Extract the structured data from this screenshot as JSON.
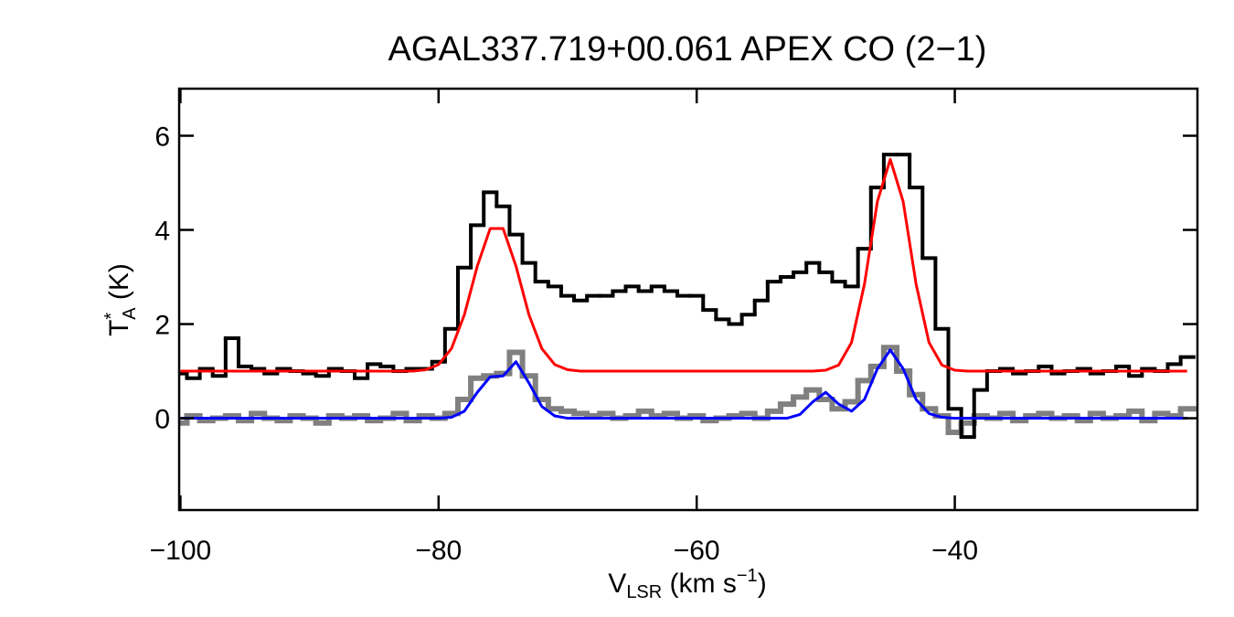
{
  "chart_data": {
    "type": "line",
    "title": "AGAL337.719+00.061  APEX CO (2−1)",
    "x_label": {
      "main": "V",
      "sub": "LSR",
      "rest": " (km s",
      "sup": "−1",
      "end": ")"
    },
    "y_label": {
      "main": "T",
      "sup": "*",
      "sub": "A",
      "rest": " (K)"
    },
    "xlim": [
      -100.1,
      -21.2
    ],
    "ylim": [
      -1.95,
      7.0
    ],
    "xticks": [
      {
        "value": -100,
        "label": "−100"
      },
      {
        "value": -80,
        "label": "−80"
      },
      {
        "value": -60,
        "label": "−60"
      },
      {
        "value": -40,
        "label": "−40"
      }
    ],
    "yticks": [
      0,
      2,
      4,
      6
    ],
    "x": [
      -100,
      -99,
      -98,
      -97,
      -96,
      -95,
      -94,
      -93,
      -92,
      -91,
      -90,
      -89,
      -88,
      -87,
      -86,
      -85,
      -84,
      -83,
      -82,
      -81,
      -80,
      -79,
      -78,
      -77,
      -76,
      -75,
      -74,
      -73,
      -72,
      -71,
      -70,
      -69,
      -68,
      -67,
      -66,
      -65,
      -64,
      -63,
      -62,
      -61,
      -60,
      -59,
      -58,
      -57,
      -56,
      -55,
      -54,
      -53,
      -52,
      -51,
      -50,
      -49,
      -48,
      -47,
      -46,
      -45,
      -44,
      -43,
      -42,
      -41,
      -40,
      -39,
      -38,
      -37,
      -36,
      -35,
      -34,
      -33,
      -32,
      -31,
      -30,
      -29,
      -28,
      -27,
      -26,
      -25,
      -24,
      -23,
      -22
    ],
    "series": [
      {
        "color": "#808080",
        "step": true,
        "values": [
          -0.1,
          0.05,
          -0.05,
          0.0,
          0.05,
          -0.05,
          0.1,
          0.0,
          -0.05,
          0.05,
          0.0,
          -0.1,
          0.05,
          0.0,
          0.05,
          -0.05,
          0.0,
          0.1,
          -0.05,
          0.05,
          0.0,
          0.1,
          0.4,
          0.85,
          0.9,
          0.95,
          1.4,
          0.9,
          0.4,
          0.2,
          0.15,
          0.1,
          0.05,
          0.1,
          0.0,
          0.05,
          0.15,
          0.05,
          0.1,
          0.0,
          0.05,
          -0.05,
          0.0,
          0.05,
          0.1,
          0.0,
          0.15,
          0.3,
          0.45,
          0.6,
          0.4,
          0.2,
          0.35,
          0.8,
          1.1,
          1.5,
          1.0,
          0.5,
          0.2,
          0.05,
          -0.3,
          -0.1,
          0.05,
          0.0,
          0.1,
          -0.05,
          0.05,
          0.1,
          0.0,
          0.05,
          -0.05,
          0.1,
          0.0,
          0.05,
          0.15,
          -0.05,
          0.1,
          0.05,
          0.2
        ]
      },
      {
        "color": "#000000",
        "step": true,
        "values": [
          0.95,
          0.85,
          1.05,
          0.9,
          1.7,
          1.1,
          1.05,
          0.95,
          1.05,
          1.0,
          0.95,
          0.9,
          1.05,
          1.0,
          0.85,
          1.15,
          1.1,
          1.0,
          1.05,
          1.05,
          1.2,
          1.9,
          3.2,
          4.1,
          4.8,
          4.5,
          3.9,
          3.3,
          2.9,
          2.8,
          2.6,
          2.5,
          2.6,
          2.6,
          2.7,
          2.8,
          2.7,
          2.8,
          2.7,
          2.6,
          2.6,
          2.3,
          2.1,
          2.0,
          2.2,
          2.5,
          2.9,
          3.0,
          3.1,
          3.3,
          3.1,
          2.9,
          2.8,
          3.6,
          4.9,
          5.6,
          5.6,
          4.9,
          3.4,
          1.9,
          0.2,
          -0.4,
          0.6,
          1.0,
          1.05,
          0.95,
          1.0,
          1.1,
          0.95,
          1.0,
          1.05,
          0.95,
          1.0,
          1.1,
          0.9,
          1.05,
          1.0,
          1.15,
          1.3
        ]
      },
      {
        "color": "#ff0000",
        "step": false,
        "values": [
          1.0,
          1.0,
          1.0,
          1.0,
          1.0,
          1.0,
          1.0,
          1.0,
          1.0,
          1.0,
          1.0,
          1.0,
          1.0,
          1.0,
          1.0,
          1.0,
          1.0,
          1.0,
          1.0,
          1.03,
          1.14,
          1.48,
          2.2,
          3.23,
          4.03,
          4.03,
          3.23,
          2.2,
          1.48,
          1.14,
          1.03,
          1.0,
          1.0,
          1.0,
          1.0,
          1.0,
          1.0,
          1.0,
          1.0,
          1.0,
          1.0,
          1.0,
          1.0,
          1.0,
          1.0,
          1.0,
          1.0,
          1.0,
          1.0,
          1.0,
          1.02,
          1.13,
          1.61,
          2.85,
          4.6,
          5.5,
          4.6,
          2.85,
          1.61,
          1.13,
          1.02,
          1.0,
          1.0,
          1.0,
          1.0,
          1.0,
          1.0,
          1.0,
          1.0,
          1.0,
          1.0,
          1.0,
          1.0,
          1.0,
          1.0,
          1.0,
          1.0,
          1.0,
          1.0
        ]
      },
      {
        "color": "#0000ff",
        "step": false,
        "values": [
          0,
          0,
          0,
          0,
          0,
          0,
          0,
          0,
          0,
          0,
          0,
          0,
          0,
          0,
          0,
          0,
          0,
          0,
          0,
          0,
          0,
          0.02,
          0.15,
          0.55,
          0.88,
          0.9,
          1.2,
          0.75,
          0.25,
          0.05,
          0,
          0,
          0,
          0,
          0,
          0,
          0,
          0,
          0,
          0,
          0,
          0,
          0,
          0,
          0,
          0,
          0,
          0,
          0.08,
          0.35,
          0.55,
          0.3,
          0.15,
          0.4,
          1.05,
          1.45,
          1.05,
          0.4,
          0.1,
          0.02,
          0,
          0,
          0,
          0,
          0,
          0,
          0,
          0,
          0,
          0,
          0,
          0,
          0,
          0,
          0,
          0,
          0,
          0,
          0
        ]
      }
    ]
  }
}
